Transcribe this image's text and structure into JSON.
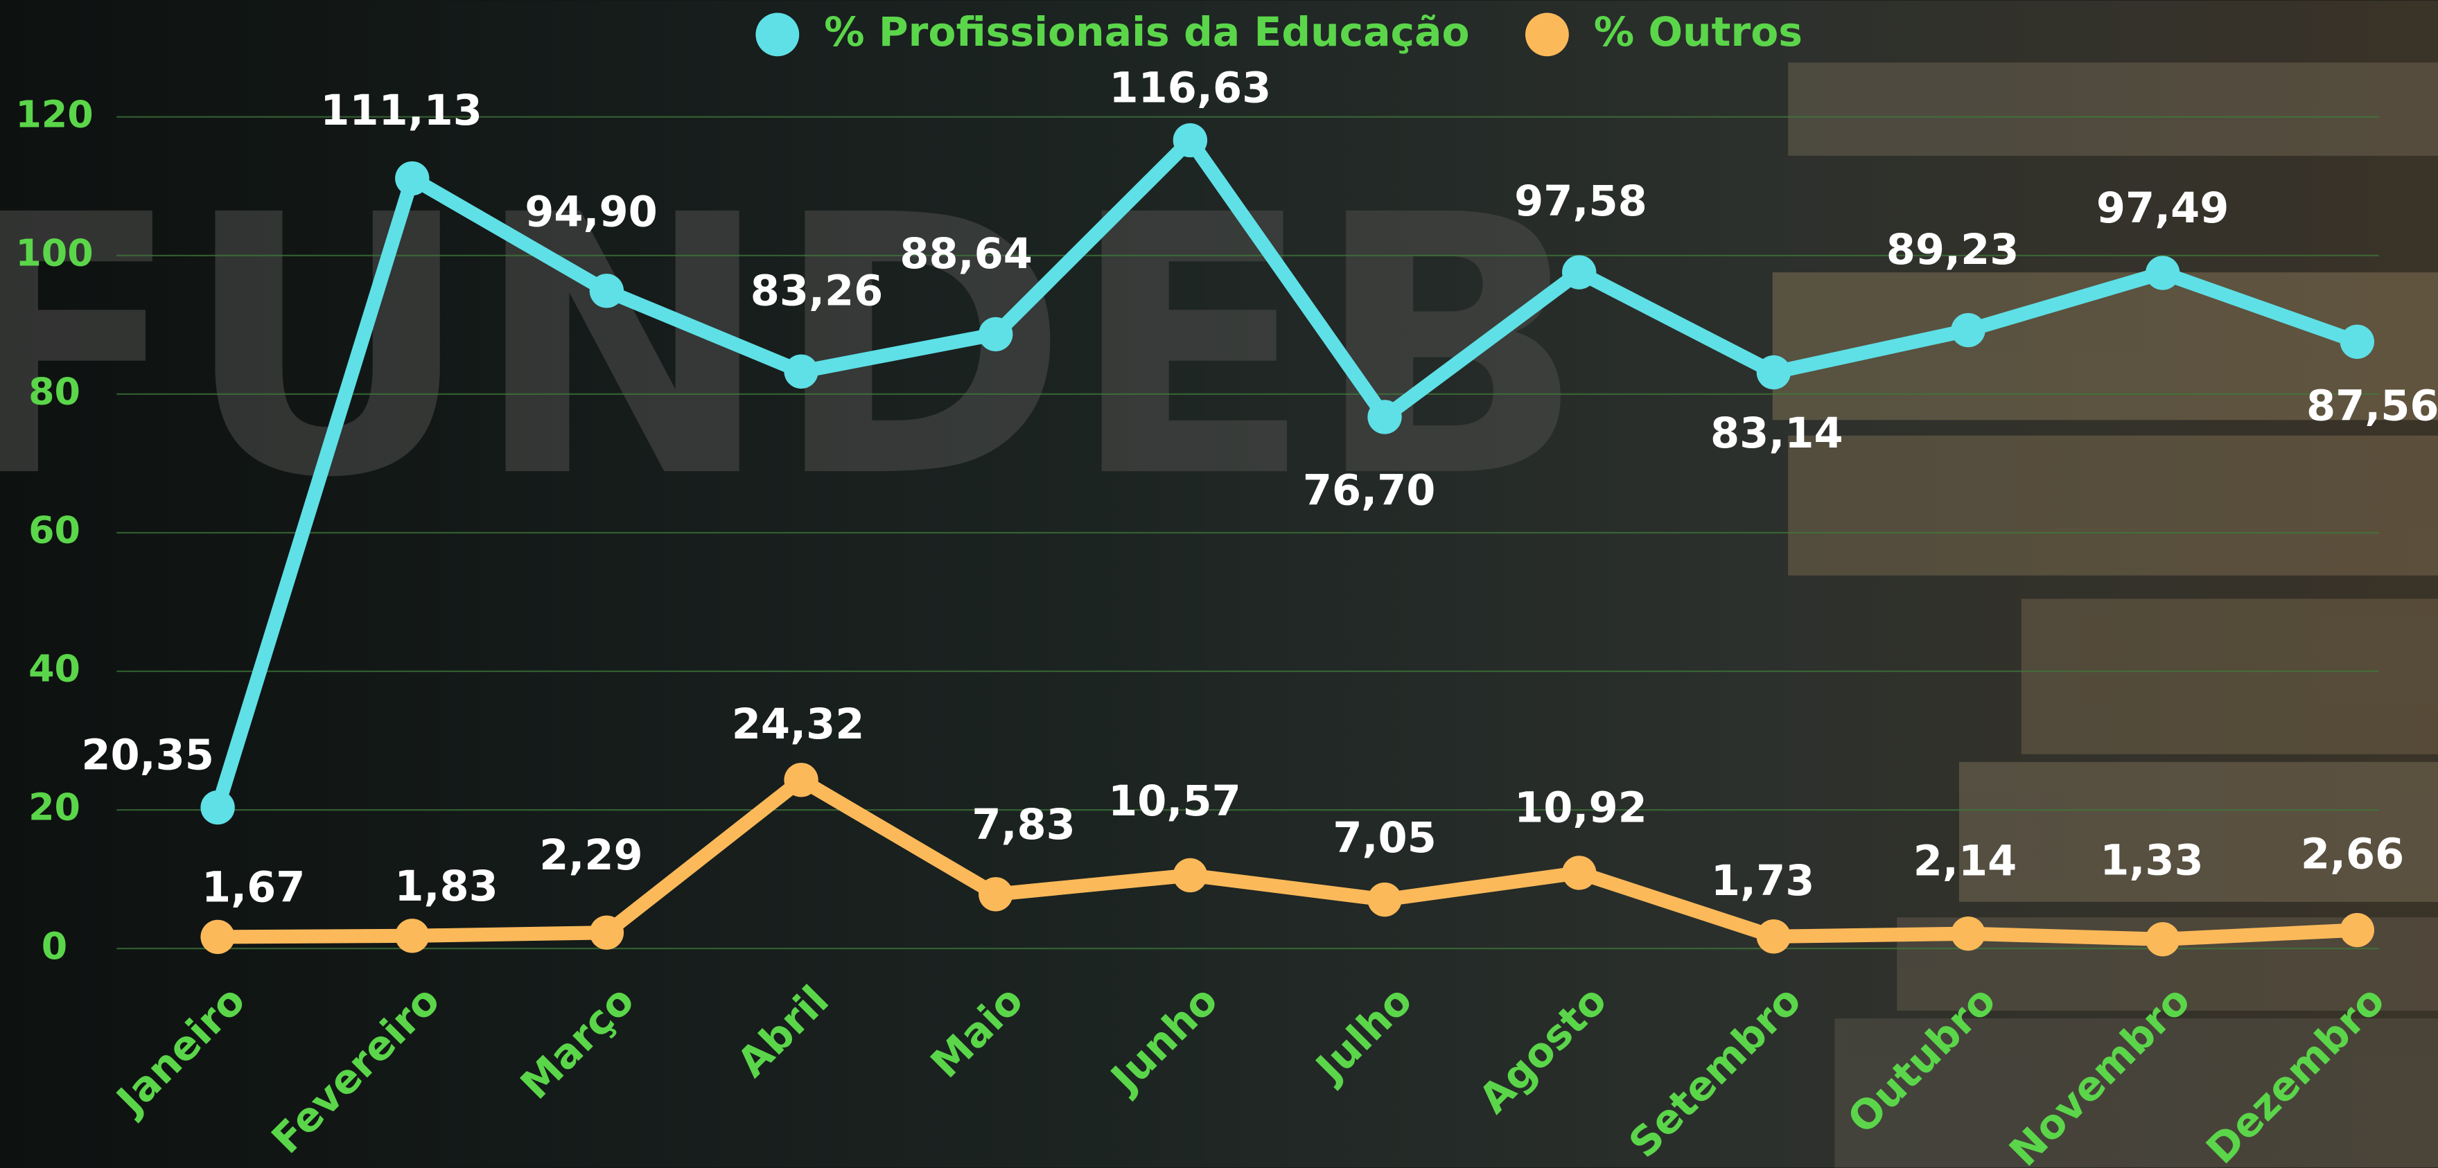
{
  "background_text": "FUNDEB",
  "chart_data": {
    "type": "line",
    "categories": [
      "Janeiro",
      "Fevereiro",
      "Março",
      "Abril",
      "Maio",
      "Junho",
      "Julho",
      "Agosto",
      "Setembro",
      "Outubro",
      "Novembro",
      "Dezembro"
    ],
    "series": [
      {
        "name": "% Profissionais da Educação",
        "color": "#5ee0e6",
        "values": [
          20.35,
          111.13,
          94.9,
          83.26,
          88.64,
          116.63,
          76.7,
          97.58,
          83.14,
          89.23,
          97.49,
          87.56
        ],
        "value_labels": [
          "20,35",
          "111,13",
          "94,90",
          "83,26",
          "88,64",
          "116,63",
          "76,70",
          "97,58",
          "83,14",
          "89,23",
          "97,49",
          "87,56"
        ]
      },
      {
        "name": "% Outros",
        "color": "#fcb95a",
        "values": [
          1.67,
          1.83,
          2.29,
          24.32,
          7.83,
          10.57,
          7.05,
          10.92,
          1.73,
          2.14,
          1.33,
          2.66
        ],
        "value_labels": [
          "1,67",
          "1,83",
          "2,29",
          "24,32",
          "7,83",
          "10,57",
          "7,05",
          "10,92",
          "1,73",
          "2,14",
          "1,33",
          "2,66"
        ]
      }
    ],
    "ylim": [
      0,
      120
    ],
    "yticks": [
      0,
      20,
      40,
      60,
      80,
      100,
      120
    ],
    "grid": true,
    "legend": "top"
  }
}
